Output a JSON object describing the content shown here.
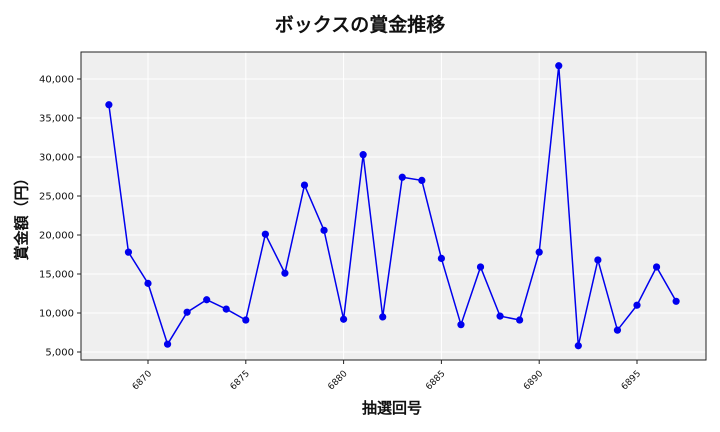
{
  "chart_data": {
    "type": "line",
    "title": "ボックスの賞金推移",
    "xlabel": "抽選回号",
    "ylabel": "賞金額（円）",
    "x": [
      6868,
      6869,
      6870,
      6871,
      6872,
      6873,
      6874,
      6875,
      6876,
      6877,
      6878,
      6879,
      6880,
      6881,
      6882,
      6883,
      6884,
      6885,
      6886,
      6887,
      6888,
      6889,
      6890,
      6891,
      6892,
      6893,
      6894,
      6895,
      6896,
      6897
    ],
    "series": [
      {
        "name": "ボックス",
        "color": "#0000ee",
        "values": [
          36700,
          17800,
          13800,
          6000,
          10100,
          11700,
          10500,
          9100,
          20100,
          15100,
          26400,
          20600,
          9200,
          30300,
          9500,
          27400,
          27000,
          17000,
          8500,
          15900,
          9600,
          9100,
          17800,
          41700,
          5800,
          16800,
          7800,
          11000,
          15900,
          11500
        ]
      }
    ],
    "xticks": [
      6870,
      6875,
      6880,
      6885,
      6890,
      6895
    ],
    "yticks": [
      5000,
      10000,
      15000,
      20000,
      25000,
      30000,
      35000,
      40000
    ],
    "ytick_labels": [
      "5,000",
      "10,000",
      "15,000",
      "20,000",
      "25,000",
      "30,000",
      "35,000",
      "40,000"
    ],
    "xlim": [
      6866,
      6898
    ],
    "ylim": [
      4000,
      43500
    ],
    "grid": true,
    "legend": "none"
  }
}
